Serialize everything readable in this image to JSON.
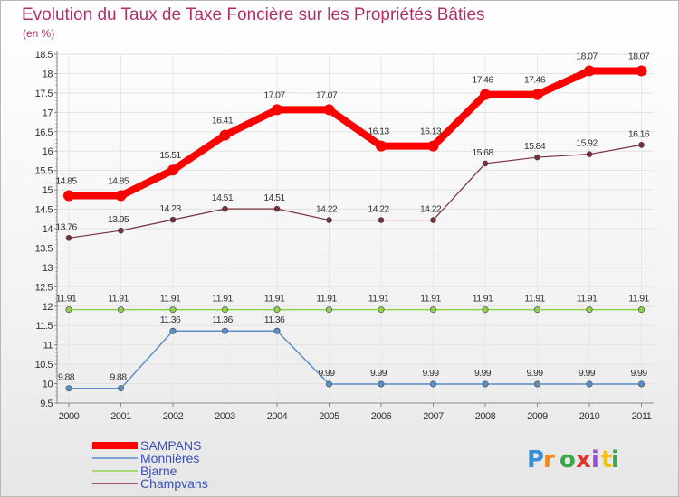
{
  "chart_data": {
    "type": "line",
    "title": "Evolution du Taux de Taxe Foncière sur les Propriétés Bâties",
    "subtitle": "(en %)",
    "ylim": [
      9.5,
      18.5
    ],
    "yticks": [
      "9.5",
      "10",
      "10.5",
      "11",
      "11.5",
      "12",
      "12.5",
      "13",
      "13.5",
      "14",
      "14.5",
      "15",
      "15.5",
      "16",
      "16.5",
      "17",
      "17.5",
      "18",
      "18.5"
    ],
    "categories": [
      "2000",
      "2001",
      "2002",
      "2003",
      "2004",
      "2005",
      "2006",
      "2007",
      "2008",
      "2009",
      "2010",
      "2011"
    ],
    "series": [
      {
        "name": "SAMPANS",
        "color": "#ff0000",
        "values": [
          14.85,
          14.85,
          15.51,
          16.41,
          17.07,
          17.07,
          16.13,
          16.13,
          17.46,
          17.46,
          18.07,
          18.07
        ],
        "labels": [
          "14.85",
          "14.85",
          "15.51",
          "16.41",
          "17.07",
          "17.07",
          "16.13",
          "16.13",
          "17.46",
          "17.46",
          "18.07",
          "18.07"
        ]
      },
      {
        "name": "Monnières",
        "color": "#5a8fc8",
        "values": [
          9.88,
          9.88,
          11.36,
          11.36,
          11.36,
          9.99,
          9.99,
          9.99,
          9.99,
          9.99,
          9.99,
          9.99
        ],
        "labels": [
          "9.88",
          "9.88",
          "11.36",
          "11.36",
          "11.36",
          "9.99",
          "9.99",
          "9.99",
          "9.99",
          "9.99",
          "9.99",
          "9.99"
        ]
      },
      {
        "name": "Bjarne",
        "color": "#8fd14f",
        "values": [
          11.91,
          11.91,
          11.91,
          11.91,
          11.91,
          11.91,
          11.91,
          11.91,
          11.91,
          11.91,
          11.91,
          11.91
        ],
        "labels": [
          "11.91",
          "11.91",
          "11.91",
          "11.91",
          "11.91",
          "11.91",
          "11.91",
          "11.91",
          "11.91",
          "11.91",
          "11.91",
          "11.91"
        ]
      },
      {
        "name": "Champvans",
        "color": "#7a2f3a",
        "values": [
          13.76,
          13.95,
          14.23,
          14.51,
          14.51,
          14.22,
          14.22,
          14.22,
          15.68,
          15.84,
          15.92,
          16.16
        ],
        "labels": [
          "13.76",
          "13.95",
          "14.23",
          "14.51",
          "14.51",
          "14.22",
          "14.22",
          "14.22",
          "15.68",
          "15.84",
          "15.92",
          "16.16"
        ]
      }
    ],
    "legend": {
      "position": "bottom-left"
    }
  },
  "logo": {
    "text": "Proxiti"
  }
}
